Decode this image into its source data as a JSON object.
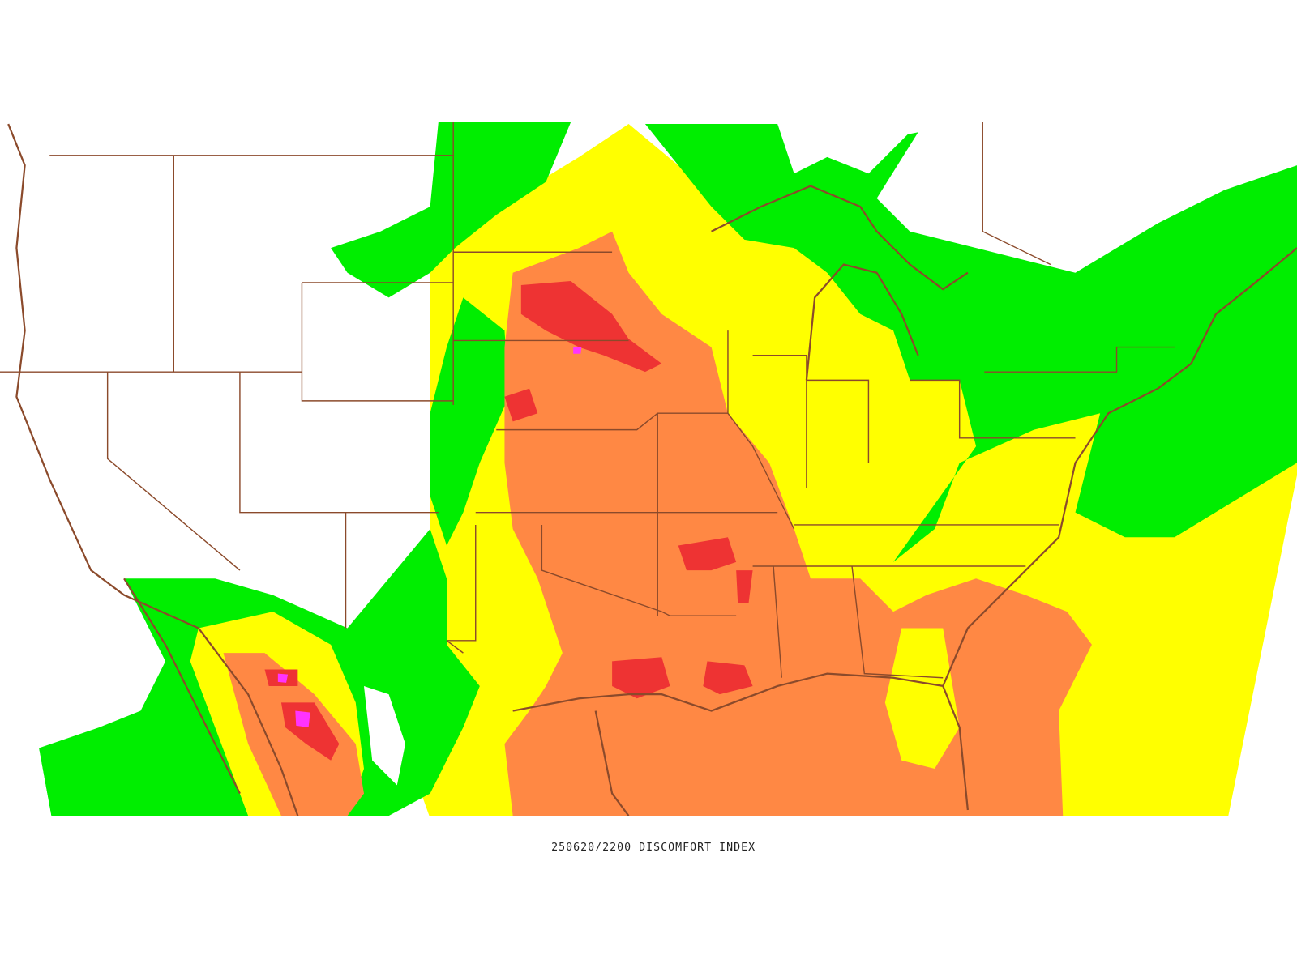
{
  "map": {
    "caption": "250620/2200 DISCOMFORT INDEX"
  }
}
